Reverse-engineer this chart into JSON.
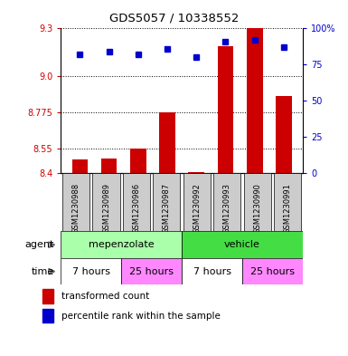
{
  "title": "GDS5057 / 10338552",
  "samples": [
    "GSM1230988",
    "GSM1230989",
    "GSM1230986",
    "GSM1230987",
    "GSM1230992",
    "GSM1230993",
    "GSM1230990",
    "GSM1230991"
  ],
  "bar_values": [
    8.48,
    8.49,
    8.55,
    8.775,
    8.405,
    9.19,
    9.3,
    8.88
  ],
  "dot_values": [
    82,
    84,
    82,
    86,
    80,
    91,
    92,
    87
  ],
  "ylim_left": [
    8.4,
    9.3
  ],
  "ylim_right": [
    0,
    100
  ],
  "yticks_left": [
    8.4,
    8.55,
    8.775,
    9.0,
    9.3
  ],
  "yticks_right": [
    0,
    25,
    50,
    75,
    100
  ],
  "bar_color": "#cc0000",
  "dot_color": "#0000cc",
  "bar_baseline": 8.4,
  "agent_groups": [
    {
      "label": "mepenzolate",
      "start": 0,
      "end": 4,
      "color": "#aaffaa"
    },
    {
      "label": "vehicle",
      "start": 4,
      "end": 8,
      "color": "#44dd44"
    }
  ],
  "time_groups": [
    {
      "label": "7 hours",
      "start": 0,
      "end": 2,
      "color": "#ffffff"
    },
    {
      "label": "25 hours",
      "start": 2,
      "end": 4,
      "color": "#ff88ff"
    },
    {
      "label": "7 hours",
      "start": 4,
      "end": 6,
      "color": "#ffffff"
    },
    {
      "label": "25 hours",
      "start": 6,
      "end": 8,
      "color": "#ff88ff"
    }
  ],
  "legend_items": [
    {
      "label": "transformed count",
      "color": "#cc0000"
    },
    {
      "label": "percentile rank within the sample",
      "color": "#0000cc"
    }
  ],
  "bg_color": "#ffffff",
  "plot_bg_color": "#ffffff",
  "tick_label_color_left": "#cc0000",
  "tick_label_color_right": "#0000cc",
  "sample_bg_color": "#cccccc"
}
